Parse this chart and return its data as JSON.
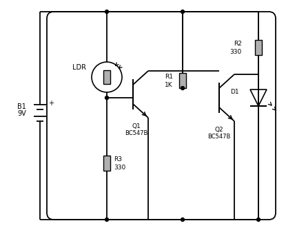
{
  "bg_color": "#ffffff",
  "line_color": "#000000",
  "component_color": "#b0b0b0",
  "labels": {
    "B1": "B1",
    "9V": "9V",
    "LDR": "LDR",
    "R1": "R1",
    "1K": "1K",
    "R2": "R2",
    "R2_val": "330",
    "R3": "R3",
    "R3_val": "330",
    "D1": "D1",
    "Q1": "Q1",
    "Q1_label": "BC547B",
    "Q2": "Q2",
    "Q2_label": "BC547B"
  }
}
